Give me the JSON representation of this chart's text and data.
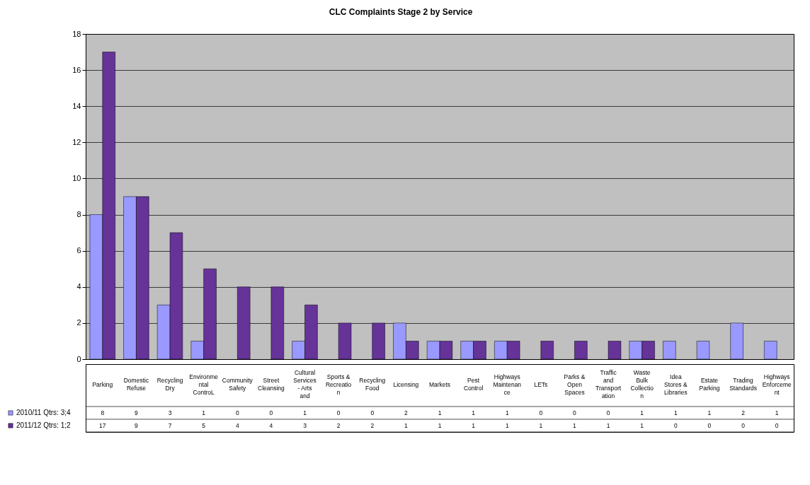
{
  "chart_data": {
    "type": "bar",
    "title": "CLC Complaints Stage 2 by Service",
    "categories": [
      "Parking",
      "Domestic Refuse",
      "Recycling Dry",
      "Environmental ControL",
      "Community Safety",
      "Street Cleansing",
      "Cultural Services - Arts and",
      "Sports & Recreation",
      "Recycling Food",
      "Licensing",
      "Markets",
      "Pest Control",
      "Highways Maintenance",
      "LETs",
      "Parks & Open Spaces",
      "Traffic and Transportation",
      "Waste Bulk Collection",
      "Idea Stores & Libraries",
      "Estate Parking",
      "Trading Standards",
      "Highways Enforcement"
    ],
    "series": [
      {
        "name": "2010/11 Qtrs: 3;4",
        "color": "#9999ff",
        "values": [
          8,
          9,
          3,
          1,
          0,
          0,
          1,
          0,
          0,
          2,
          1,
          1,
          1,
          0,
          0,
          0,
          1,
          1,
          1,
          2,
          1
        ]
      },
      {
        "name": "2011/12 Qtrs: 1;2",
        "color": "#663399",
        "values": [
          17,
          9,
          7,
          5,
          4,
          4,
          3,
          2,
          2,
          1,
          1,
          1,
          1,
          1,
          1,
          1,
          1,
          0,
          0,
          0,
          0
        ]
      }
    ],
    "ylim": [
      0,
      18
    ],
    "yticks": [
      0,
      2,
      4,
      6,
      8,
      10,
      12,
      14,
      16,
      18
    ],
    "grid": "y",
    "data_labels": true,
    "legend": "bottom left"
  }
}
